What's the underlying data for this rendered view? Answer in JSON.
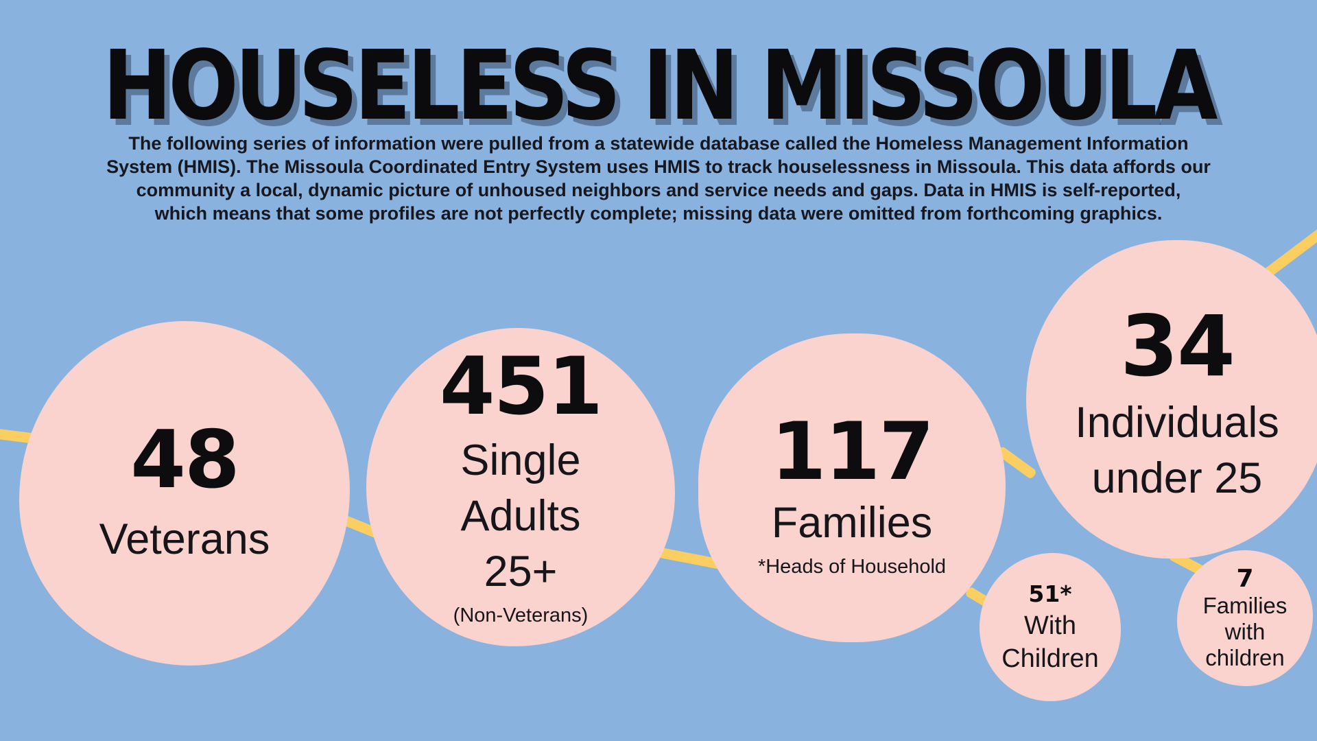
{
  "header": {
    "title": "HOUSELESS IN MISSOULA",
    "intro_lines": [
      "The following series of information were pulled from a statewide database called the Homeless Management Information",
      "System (HMIS). The Missoula Coordinated Entry System uses HMIS to track houselessness in Missoula. This data affords our",
      "community a local, dynamic picture of unhoused neighbors and service needs and gaps. Data in HMIS is self-reported,",
      "which means that some profiles are not perfectly complete; missing data were omitted from forthcoming graphics."
    ]
  },
  "bubbles": {
    "veterans": {
      "number": "48",
      "label": "Veterans"
    },
    "single_adults": {
      "number": "451",
      "label_lines": [
        "Single",
        "Adults",
        "25+"
      ],
      "note": "(Non-Veterans)"
    },
    "families": {
      "number": "117",
      "label": "Families",
      "note": "*Heads of Household"
    },
    "under_25": {
      "number": "34",
      "label_lines": [
        "Individuals",
        "under 25"
      ]
    },
    "with_children": {
      "number": "51*",
      "label": "With Children"
    },
    "families_with_children": {
      "number": "7",
      "label_lines": [
        "Families",
        "with",
        "children"
      ]
    }
  },
  "colors": {
    "background": "#89B3DE",
    "bubble": "#FAD3CE",
    "connector": "#FBCE61",
    "title_text": "#0B0B0D",
    "body_text": "#17171F"
  },
  "chart_data": {
    "type": "bubble",
    "title": "Houseless in Missoula",
    "legend_position": "none",
    "bubbles": [
      {
        "label": "Veterans",
        "value": 48
      },
      {
        "label": "Single Adults 25+",
        "note": "Non-Veterans",
        "value": 451
      },
      {
        "label": "Families",
        "note": "Heads of Household",
        "value": 117,
        "sub_bubbles": [
          {
            "label": "With Children",
            "value": "51*"
          }
        ]
      },
      {
        "label": "Individuals under 25",
        "value": 34,
        "sub_bubbles": [
          {
            "label": "Families with children",
            "value": 7
          }
        ]
      }
    ]
  }
}
